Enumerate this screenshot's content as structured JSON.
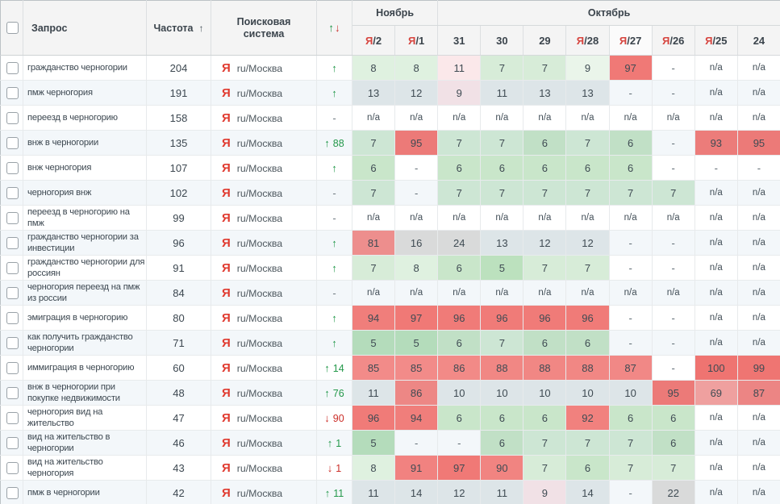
{
  "table": {
    "header": {
      "query_label": "Запрос",
      "frequency_label": "Частота",
      "frequency_sort_icon": "↑",
      "search_engine_label": "Поисковая система",
      "change_up_icon": "↑",
      "change_down_icon": "↓"
    },
    "month_groups": [
      {
        "label": "Ноябрь",
        "span": 2
      },
      {
        "label": "Октябрь",
        "span": 8
      }
    ],
    "date_columns": [
      {
        "prefix": "Я",
        "day": "/2",
        "highlight": false
      },
      {
        "prefix": "Я",
        "day": "/1",
        "highlight": false
      },
      {
        "prefix": "",
        "day": "31",
        "highlight": false
      },
      {
        "prefix": "",
        "day": "30",
        "highlight": false
      },
      {
        "prefix": "",
        "day": "29",
        "highlight": false
      },
      {
        "prefix": "Я",
        "day": "/28",
        "highlight": false
      },
      {
        "prefix": "Я",
        "day": "/27",
        "highlight": true
      },
      {
        "prefix": "Я",
        "day": "/26",
        "highlight": false
      },
      {
        "prefix": "Я",
        "day": "/25",
        "highlight": false
      },
      {
        "prefix": "",
        "day": "24",
        "highlight": false
      }
    ],
    "not_available_text": "n/a",
    "dash_text": "-",
    "rows": [
      {
        "query": "гражданство черногории",
        "frequency": "204",
        "engine": {
          "icon": "Я",
          "label": "ru/Москва"
        },
        "change": {
          "dir": "up",
          "value": ""
        },
        "positions": [
          {
            "v": "8",
            "t": "g8"
          },
          {
            "v": "8",
            "t": "g8"
          },
          {
            "v": "11",
            "t": "pk"
          },
          {
            "v": "7",
            "t": "g7"
          },
          {
            "v": "7",
            "t": "g7"
          },
          {
            "v": "9",
            "t": "g9"
          },
          {
            "v": "97",
            "t": "rd"
          },
          {
            "v": "-",
            "t": "none"
          },
          {
            "v": "n/a",
            "t": "none"
          },
          {
            "v": "n/a",
            "t": "none"
          }
        ]
      },
      {
        "query": "пмж черногория",
        "frequency": "191",
        "engine": {
          "icon": "Я",
          "label": "ru/Москва"
        },
        "change": {
          "dir": "up",
          "value": ""
        },
        "positions": [
          {
            "v": "13",
            "t": "gy"
          },
          {
            "v": "12",
            "t": "gy"
          },
          {
            "v": "9",
            "t": "pk"
          },
          {
            "v": "11",
            "t": "gy"
          },
          {
            "v": "13",
            "t": "gy"
          },
          {
            "v": "13",
            "t": "gy"
          },
          {
            "v": "-",
            "t": "none"
          },
          {
            "v": "-",
            "t": "none"
          },
          {
            "v": "n/a",
            "t": "none"
          },
          {
            "v": "n/a",
            "t": "none"
          }
        ]
      },
      {
        "query": "переезд в черногорию",
        "frequency": "158",
        "engine": {
          "icon": "Я",
          "label": "ru/Москва"
        },
        "change": {
          "dir": "none",
          "value": ""
        },
        "positions": [
          {
            "v": "n/a",
            "t": "none"
          },
          {
            "v": "n/a",
            "t": "none"
          },
          {
            "v": "n/a",
            "t": "none"
          },
          {
            "v": "n/a",
            "t": "none"
          },
          {
            "v": "n/a",
            "t": "none"
          },
          {
            "v": "n/a",
            "t": "none"
          },
          {
            "v": "n/a",
            "t": "none"
          },
          {
            "v": "n/a",
            "t": "none"
          },
          {
            "v": "n/a",
            "t": "none"
          },
          {
            "v": "n/a",
            "t": "none"
          }
        ]
      },
      {
        "query": "внж в черногории",
        "frequency": "135",
        "engine": {
          "icon": "Я",
          "label": "ru/Москва"
        },
        "change": {
          "dir": "up",
          "value": "88"
        },
        "positions": [
          {
            "v": "7",
            "t": "g7"
          },
          {
            "v": "95",
            "t": "rd"
          },
          {
            "v": "7",
            "t": "g7"
          },
          {
            "v": "7",
            "t": "g7"
          },
          {
            "v": "6",
            "t": "g6"
          },
          {
            "v": "7",
            "t": "g7"
          },
          {
            "v": "6",
            "t": "g6"
          },
          {
            "v": "-",
            "t": "none"
          },
          {
            "v": "93",
            "t": "rd"
          },
          {
            "v": "95",
            "t": "rd"
          }
        ]
      },
      {
        "query": "внж черногория",
        "frequency": "107",
        "engine": {
          "icon": "Я",
          "label": "ru/Москва"
        },
        "change": {
          "dir": "up",
          "value": ""
        },
        "positions": [
          {
            "v": "6",
            "t": "g6"
          },
          {
            "v": "-",
            "t": "none"
          },
          {
            "v": "6",
            "t": "g6"
          },
          {
            "v": "6",
            "t": "g6"
          },
          {
            "v": "6",
            "t": "g6"
          },
          {
            "v": "6",
            "t": "g6"
          },
          {
            "v": "6",
            "t": "g6"
          },
          {
            "v": "-",
            "t": "none"
          },
          {
            "v": "-",
            "t": "none"
          },
          {
            "v": "-",
            "t": "none"
          }
        ]
      },
      {
        "query": "черногория внж",
        "frequency": "102",
        "engine": {
          "icon": "Я",
          "label": "ru/Москва"
        },
        "change": {
          "dir": "none",
          "value": ""
        },
        "positions": [
          {
            "v": "7",
            "t": "g7"
          },
          {
            "v": "-",
            "t": "none"
          },
          {
            "v": "7",
            "t": "g7"
          },
          {
            "v": "7",
            "t": "g7"
          },
          {
            "v": "7",
            "t": "g7"
          },
          {
            "v": "7",
            "t": "g7"
          },
          {
            "v": "7",
            "t": "g7"
          },
          {
            "v": "7",
            "t": "g7"
          },
          {
            "v": "n/a",
            "t": "none"
          },
          {
            "v": "n/a",
            "t": "none"
          }
        ]
      },
      {
        "query": "переезд в черногорию на пмж",
        "frequency": "99",
        "engine": {
          "icon": "Я",
          "label": "ru/Москва"
        },
        "change": {
          "dir": "none",
          "value": ""
        },
        "positions": [
          {
            "v": "n/a",
            "t": "none"
          },
          {
            "v": "n/a",
            "t": "none"
          },
          {
            "v": "n/a",
            "t": "none"
          },
          {
            "v": "n/a",
            "t": "none"
          },
          {
            "v": "n/a",
            "t": "none"
          },
          {
            "v": "n/a",
            "t": "none"
          },
          {
            "v": "n/a",
            "t": "none"
          },
          {
            "v": "n/a",
            "t": "none"
          },
          {
            "v": "n/a",
            "t": "none"
          },
          {
            "v": "n/a",
            "t": "none"
          }
        ]
      },
      {
        "query": "гражданство черногории за инвестиции",
        "frequency": "96",
        "engine": {
          "icon": "Я",
          "label": "ru/Москва"
        },
        "change": {
          "dir": "up",
          "value": ""
        },
        "positions": [
          {
            "v": "81",
            "t": "rd"
          },
          {
            "v": "16",
            "t": "gy2"
          },
          {
            "v": "24",
            "t": "gy2"
          },
          {
            "v": "13",
            "t": "gy"
          },
          {
            "v": "12",
            "t": "gy"
          },
          {
            "v": "12",
            "t": "gy"
          },
          {
            "v": "-",
            "t": "none"
          },
          {
            "v": "-",
            "t": "none"
          },
          {
            "v": "n/a",
            "t": "none"
          },
          {
            "v": "n/a",
            "t": "none"
          }
        ]
      },
      {
        "query": "гражданство черногории для россиян",
        "frequency": "91",
        "engine": {
          "icon": "Я",
          "label": "ru/Москва"
        },
        "change": {
          "dir": "up",
          "value": ""
        },
        "positions": [
          {
            "v": "7",
            "t": "g7"
          },
          {
            "v": "8",
            "t": "g8"
          },
          {
            "v": "6",
            "t": "g6"
          },
          {
            "v": "5",
            "t": "g5"
          },
          {
            "v": "7",
            "t": "g7"
          },
          {
            "v": "7",
            "t": "g7"
          },
          {
            "v": "-",
            "t": "none"
          },
          {
            "v": "-",
            "t": "none"
          },
          {
            "v": "n/a",
            "t": "none"
          },
          {
            "v": "n/a",
            "t": "none"
          }
        ]
      },
      {
        "query": "черногория переезд на пмж из россии",
        "frequency": "84",
        "engine": {
          "icon": "Я",
          "label": "ru/Москва"
        },
        "change": {
          "dir": "none",
          "value": ""
        },
        "positions": [
          {
            "v": "n/a",
            "t": "none"
          },
          {
            "v": "n/a",
            "t": "none"
          },
          {
            "v": "n/a",
            "t": "none"
          },
          {
            "v": "n/a",
            "t": "none"
          },
          {
            "v": "n/a",
            "t": "none"
          },
          {
            "v": "n/a",
            "t": "none"
          },
          {
            "v": "n/a",
            "t": "none"
          },
          {
            "v": "n/a",
            "t": "none"
          },
          {
            "v": "n/a",
            "t": "none"
          },
          {
            "v": "n/a",
            "t": "none"
          }
        ]
      },
      {
        "query": "эмиграция в черногорию",
        "frequency": "80",
        "engine": {
          "icon": "Я",
          "label": "ru/Москва"
        },
        "change": {
          "dir": "up",
          "value": ""
        },
        "positions": [
          {
            "v": "94",
            "t": "rd"
          },
          {
            "v": "97",
            "t": "rd"
          },
          {
            "v": "96",
            "t": "rd"
          },
          {
            "v": "96",
            "t": "rd"
          },
          {
            "v": "96",
            "t": "rd"
          },
          {
            "v": "96",
            "t": "rd"
          },
          {
            "v": "-",
            "t": "none"
          },
          {
            "v": "-",
            "t": "none"
          },
          {
            "v": "n/a",
            "t": "none"
          },
          {
            "v": "n/a",
            "t": "none"
          }
        ]
      },
      {
        "query": "как получить гражданство черногории",
        "frequency": "71",
        "engine": {
          "icon": "Я",
          "label": "ru/Москва"
        },
        "change": {
          "dir": "up",
          "value": ""
        },
        "positions": [
          {
            "v": "5",
            "t": "g5"
          },
          {
            "v": "5",
            "t": "g5"
          },
          {
            "v": "6",
            "t": "g6"
          },
          {
            "v": "7",
            "t": "g7"
          },
          {
            "v": "6",
            "t": "g6"
          },
          {
            "v": "6",
            "t": "g6"
          },
          {
            "v": "-",
            "t": "none"
          },
          {
            "v": "-",
            "t": "none"
          },
          {
            "v": "n/a",
            "t": "none"
          },
          {
            "v": "n/a",
            "t": "none"
          }
        ]
      },
      {
        "query": "иммиграция в черногорию",
        "frequency": "60",
        "engine": {
          "icon": "Я",
          "label": "ru/Москва"
        },
        "change": {
          "dir": "up",
          "value": "14"
        },
        "positions": [
          {
            "v": "85",
            "t": "rd"
          },
          {
            "v": "85",
            "t": "rd"
          },
          {
            "v": "86",
            "t": "rd"
          },
          {
            "v": "88",
            "t": "rd"
          },
          {
            "v": "88",
            "t": "rd"
          },
          {
            "v": "88",
            "t": "rd"
          },
          {
            "v": "87",
            "t": "rd"
          },
          {
            "v": "-",
            "t": "none"
          },
          {
            "v": "100",
            "t": "rd"
          },
          {
            "v": "99",
            "t": "rd"
          }
        ]
      },
      {
        "query": "внж в черногории при покупке недвижимости",
        "frequency": "48",
        "engine": {
          "icon": "Я",
          "label": "ru/Москва"
        },
        "change": {
          "dir": "up",
          "value": "76"
        },
        "positions": [
          {
            "v": "11",
            "t": "gy"
          },
          {
            "v": "86",
            "t": "rd"
          },
          {
            "v": "10",
            "t": "gy"
          },
          {
            "v": "10",
            "t": "gy"
          },
          {
            "v": "10",
            "t": "gy"
          },
          {
            "v": "10",
            "t": "gy"
          },
          {
            "v": "10",
            "t": "gy"
          },
          {
            "v": "95",
            "t": "rd"
          },
          {
            "v": "69",
            "t": "rd"
          },
          {
            "v": "87",
            "t": "rd"
          }
        ]
      },
      {
        "query": "черногория вид на жительство",
        "frequency": "47",
        "engine": {
          "icon": "Я",
          "label": "ru/Москва"
        },
        "change": {
          "dir": "down",
          "value": "90"
        },
        "positions": [
          {
            "v": "96",
            "t": "rd"
          },
          {
            "v": "94",
            "t": "rd"
          },
          {
            "v": "6",
            "t": "g6"
          },
          {
            "v": "6",
            "t": "g6"
          },
          {
            "v": "6",
            "t": "g6"
          },
          {
            "v": "92",
            "t": "rd"
          },
          {
            "v": "6",
            "t": "g6"
          },
          {
            "v": "6",
            "t": "g6"
          },
          {
            "v": "n/a",
            "t": "none"
          },
          {
            "v": "n/a",
            "t": "none"
          }
        ]
      },
      {
        "query": "вид на жительство в черногории",
        "frequency": "46",
        "engine": {
          "icon": "Я",
          "label": "ru/Москва"
        },
        "change": {
          "dir": "up",
          "value": "1"
        },
        "positions": [
          {
            "v": "5",
            "t": "g5"
          },
          {
            "v": "-",
            "t": "none"
          },
          {
            "v": "-",
            "t": "none"
          },
          {
            "v": "6",
            "t": "g6"
          },
          {
            "v": "7",
            "t": "g7"
          },
          {
            "v": "7",
            "t": "g7"
          },
          {
            "v": "7",
            "t": "g7"
          },
          {
            "v": "6",
            "t": "g6"
          },
          {
            "v": "n/a",
            "t": "none"
          },
          {
            "v": "n/a",
            "t": "none"
          }
        ]
      },
      {
        "query": "вид на жительство черногория",
        "frequency": "43",
        "engine": {
          "icon": "Я",
          "label": "ru/Москва"
        },
        "change": {
          "dir": "down",
          "value": "1"
        },
        "positions": [
          {
            "v": "8",
            "t": "g8"
          },
          {
            "v": "91",
            "t": "rd"
          },
          {
            "v": "97",
            "t": "rd"
          },
          {
            "v": "90",
            "t": "rd"
          },
          {
            "v": "7",
            "t": "g7"
          },
          {
            "v": "6",
            "t": "g6"
          },
          {
            "v": "7",
            "t": "g7"
          },
          {
            "v": "7",
            "t": "g7"
          },
          {
            "v": "n/a",
            "t": "none"
          },
          {
            "v": "n/a",
            "t": "none"
          }
        ]
      },
      {
        "query": "пмж в черногории",
        "frequency": "42",
        "engine": {
          "icon": "Я",
          "label": "ru/Москва"
        },
        "change": {
          "dir": "up",
          "value": "11"
        },
        "positions": [
          {
            "v": "11",
            "t": "gy"
          },
          {
            "v": "14",
            "t": "gy"
          },
          {
            "v": "12",
            "t": "gy"
          },
          {
            "v": "11",
            "t": "gy"
          },
          {
            "v": "9",
            "t": "pk"
          },
          {
            "v": "14",
            "t": "gy"
          },
          {
            "v": "-",
            "t": "none"
          },
          {
            "v": "22",
            "t": "gy2"
          },
          {
            "v": "n/a",
            "t": "none"
          },
          {
            "v": "n/a",
            "t": "none"
          }
        ]
      }
    ]
  },
  "theme": {
    "zebra_row_bg": "#f3f7fa",
    "header_bg": "#f4f4f4",
    "yandex_red": "#e03a2f",
    "day_ya_red": "#d6453f",
    "up_green": "#23984a",
    "down_red": "#cb2e28",
    "cell_colors": {
      "g5": "rgba(80,175,85,0.38)",
      "g6": "rgba(80,175,85,0.31)",
      "g7": "rgba(80,175,85,0.23)",
      "g8": "rgba(80,175,85,0.18)",
      "g9": "rgba(80,175,85,0.12)",
      "gy": "rgba(122,148,150,0.18)",
      "gy2": "rgba(150,145,135,0.28)",
      "pk": "rgba(235,130,140,0.18)",
      "none": ""
    },
    "red_cell": {
      "rgb": "233,62,58",
      "alpha_base": 0.32,
      "alpha_per_pos": 0.008,
      "alpha_min_pos": 50,
      "alpha_max": 0.72
    }
  }
}
